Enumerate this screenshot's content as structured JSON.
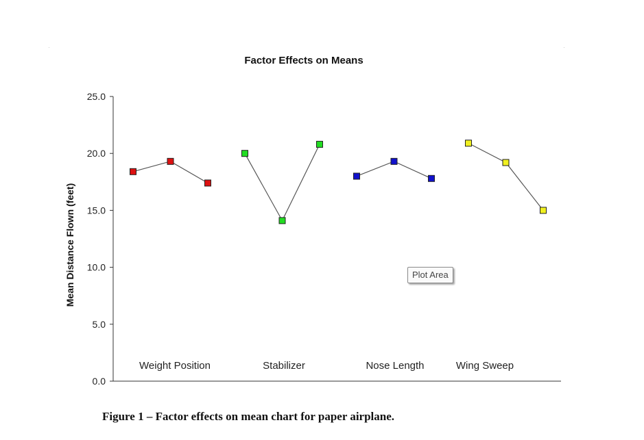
{
  "chart_data": {
    "type": "line",
    "title": "Factor Effects  on Means",
    "ylabel": "Mean Distance Flown (feet)",
    "xlabel": "",
    "ylim": [
      0,
      25
    ],
    "y_ticks": [
      "0.0",
      "5.0",
      "10.0",
      "15.0",
      "20.0",
      "25.0"
    ],
    "grid": false,
    "legend": "none",
    "groups": [
      {
        "label": "Weight Position",
        "color": "#dd1111",
        "values": [
          18.4,
          19.3,
          17.4
        ]
      },
      {
        "label": "Stabilizer",
        "color": "#22dd22",
        "values": [
          20.0,
          14.1,
          20.8
        ]
      },
      {
        "label": "Nose Length",
        "color": "#1111cc",
        "values": [
          18.0,
          19.3,
          17.8
        ]
      },
      {
        "label": "Wing Sweep",
        "color": "#f0f020",
        "values": [
          20.9,
          19.2,
          15.0
        ]
      }
    ]
  },
  "tooltip": {
    "text": "Plot Area"
  },
  "caption": {
    "text": "Figure 1 – Factor effects on mean chart for paper airplane."
  }
}
